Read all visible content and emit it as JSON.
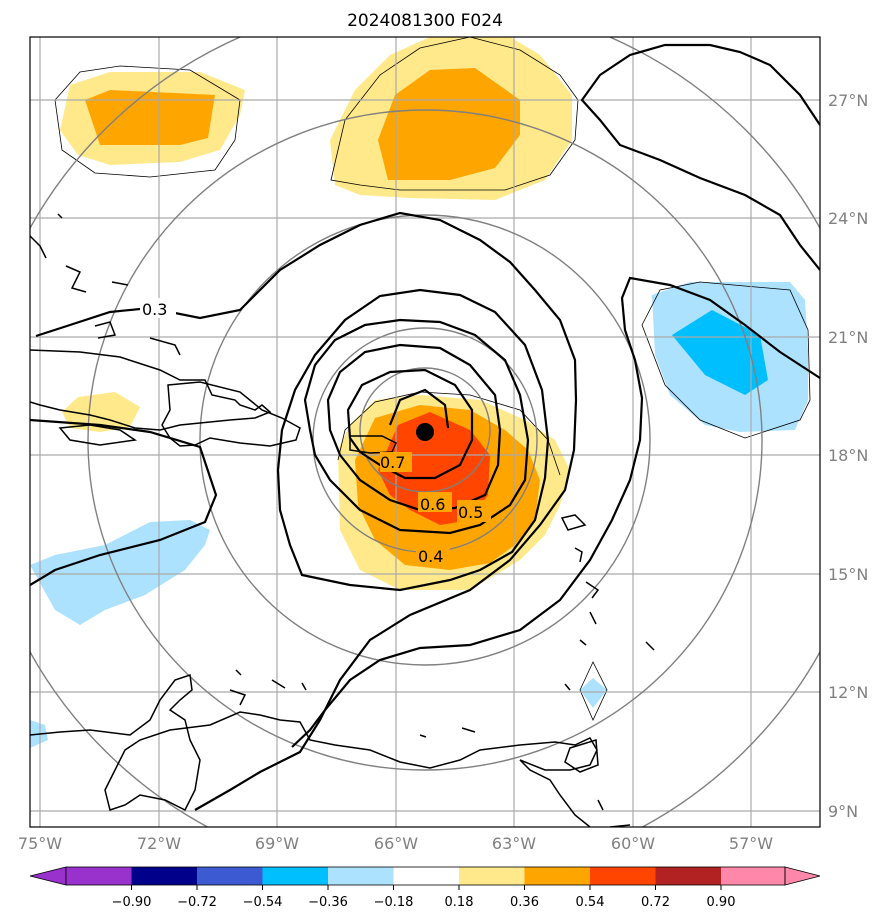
{
  "title": "2024081300 F024",
  "map": {
    "lon_labels": [
      "75°W",
      "72°W",
      "69°W",
      "66°W",
      "63°W",
      "60°W",
      "57°W"
    ],
    "lat_labels": [
      "27°N",
      "24°N",
      "21°N",
      "18°N",
      "15°N",
      "12°N",
      "9°N"
    ],
    "contour_labels": [
      "0.3",
      "0.7",
      "0.6",
      "0.5",
      "0.4"
    ],
    "storm_center": {
      "lon": -65.0,
      "lat": 18.6
    }
  },
  "colorbar": {
    "ticks": [
      "−0.90",
      "−0.72",
      "−0.54",
      "−0.36",
      "−0.18",
      "0.18",
      "0.36",
      "0.54",
      "0.72",
      "0.90"
    ],
    "colors": [
      "#9932cc",
      "#00008b",
      "#3c5ad2",
      "#00bfff",
      "#ade2ff",
      "#ffffff",
      "#ffe98a",
      "#ffa500",
      "#ff4500",
      "#b22222",
      "#ff88aa",
      "#ff88aa"
    ]
  },
  "colors": {
    "fill_036": "#ffe98a",
    "fill_054": "#ffa500",
    "fill_072": "#ff4500",
    "fill_m036": "#ade2ff",
    "fill_m054": "#00bfff",
    "grid": "#aaaaaa",
    "range_rings": "#808080"
  }
}
